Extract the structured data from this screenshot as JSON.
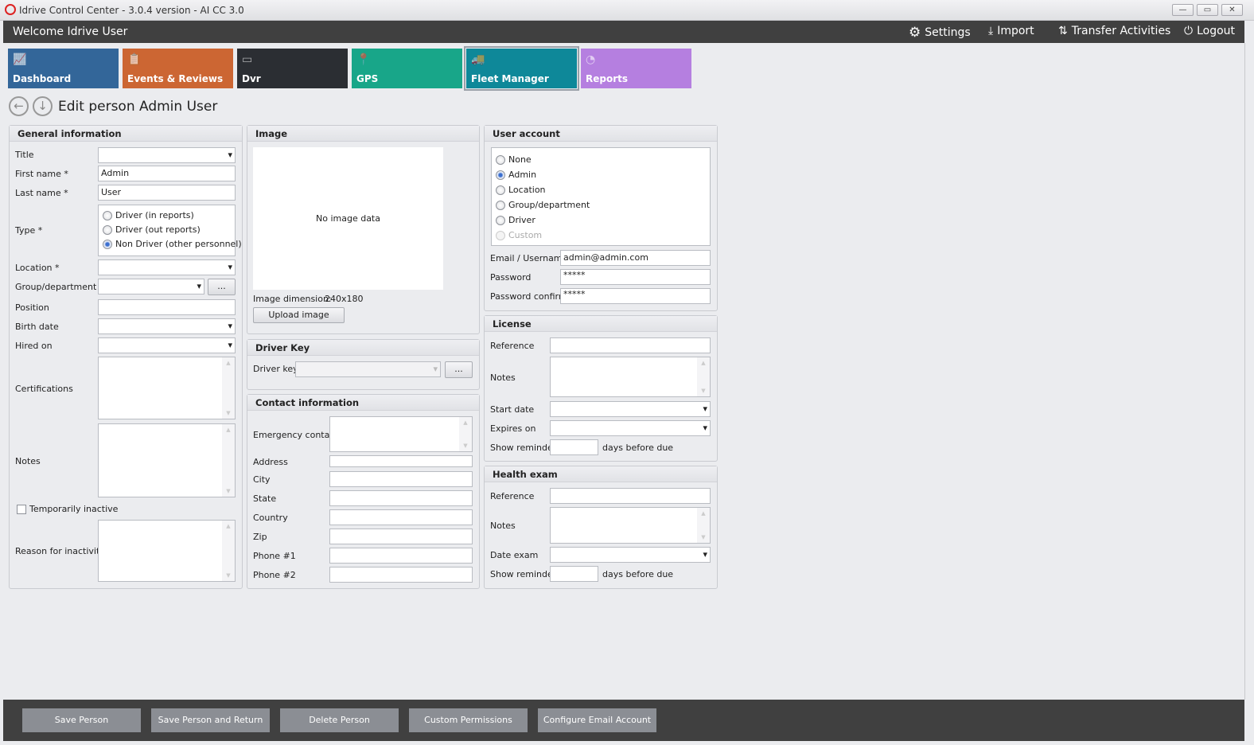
{
  "window": {
    "title": "Idrive Control Center - 3.0.4 version - AI CC 3.0",
    "minimize": "—",
    "maximize": "▭",
    "close": "✕"
  },
  "topbar": {
    "welcome": "Welcome Idrive User",
    "settings": "Settings",
    "import": "Import",
    "transfer": "Transfer Activities",
    "logout": "Logout"
  },
  "tiles": [
    {
      "label": "Dashboard",
      "color": "#336699",
      "icon": "chart-icon"
    },
    {
      "label": "Events & Reviews",
      "color": "#cc6633",
      "icon": "clipboard-icon"
    },
    {
      "label": "Dvr",
      "color": "#2b2e33",
      "icon": "dvr-icon"
    },
    {
      "label": "GPS",
      "color": "#18a689",
      "icon": "map-pin-icon"
    },
    {
      "label": "Fleet Manager",
      "color": "#0e8899",
      "icon": "vehicles-icon",
      "selected": true
    },
    {
      "label": "Reports",
      "color": "#b57fe0",
      "icon": "pie-chart-icon"
    }
  ],
  "page": {
    "title": "Edit person Admin User"
  },
  "general": {
    "header": "General information",
    "title_label": "Title",
    "title_value": "",
    "first_label": "First name *",
    "first_value": "Admin",
    "last_label": "Last name *",
    "last_value": "User",
    "type_label": "Type *",
    "type_options": [
      "Driver (in reports)",
      "Driver (out reports)",
      "Non Driver (other personnel)"
    ],
    "type_selected": "Non Driver (other personnel)",
    "location_label": "Location *",
    "group_label": "Group/department",
    "browse": "...",
    "position_label": "Position",
    "birth_label": "Birth date",
    "hired_label": "Hired on",
    "cert_label": "Certifications",
    "notes_label": "Notes",
    "inactive_label": "Temporarily inactive",
    "inactive_checked": false,
    "reason_label": "Reason for inactivity"
  },
  "image": {
    "header": "Image",
    "empty": "No image data",
    "dimension_label": "Image dimension:",
    "dimension_value": "240x180",
    "upload": "Upload image"
  },
  "driver_key": {
    "header": "Driver Key",
    "label": "Driver key",
    "browse": "..."
  },
  "contact": {
    "header": "Contact information",
    "emergency": "Emergency contact",
    "address": "Address",
    "city": "City",
    "state": "State",
    "country": "Country",
    "zip": "Zip",
    "phone1": "Phone #1",
    "phone2": "Phone #2"
  },
  "account": {
    "header": "User account",
    "roles": [
      "None",
      "Admin",
      "Location",
      "Group/department",
      "Driver",
      "Custom"
    ],
    "selected": "Admin",
    "disabled": [
      "Custom"
    ],
    "email_label": "Email / Username",
    "email_value": "admin@admin.com",
    "password_label": "Password",
    "password_value": "*****",
    "confirm_label": "Password confirm",
    "confirm_value": "*****"
  },
  "license": {
    "header": "License",
    "reference": "Reference",
    "notes": "Notes",
    "start": "Start date",
    "expires": "Expires on",
    "reminder": "Show reminder",
    "reminder_suffix": "days before due"
  },
  "health": {
    "header": "Health exam",
    "reference": "Reference",
    "notes": "Notes",
    "date": "Date exam",
    "reminder": "Show reminder",
    "reminder_suffix": "days before due"
  },
  "actions": [
    "Save Person",
    "Save Person and Return",
    "Delete Person",
    "Custom Permissions",
    "Configure Email Account"
  ]
}
